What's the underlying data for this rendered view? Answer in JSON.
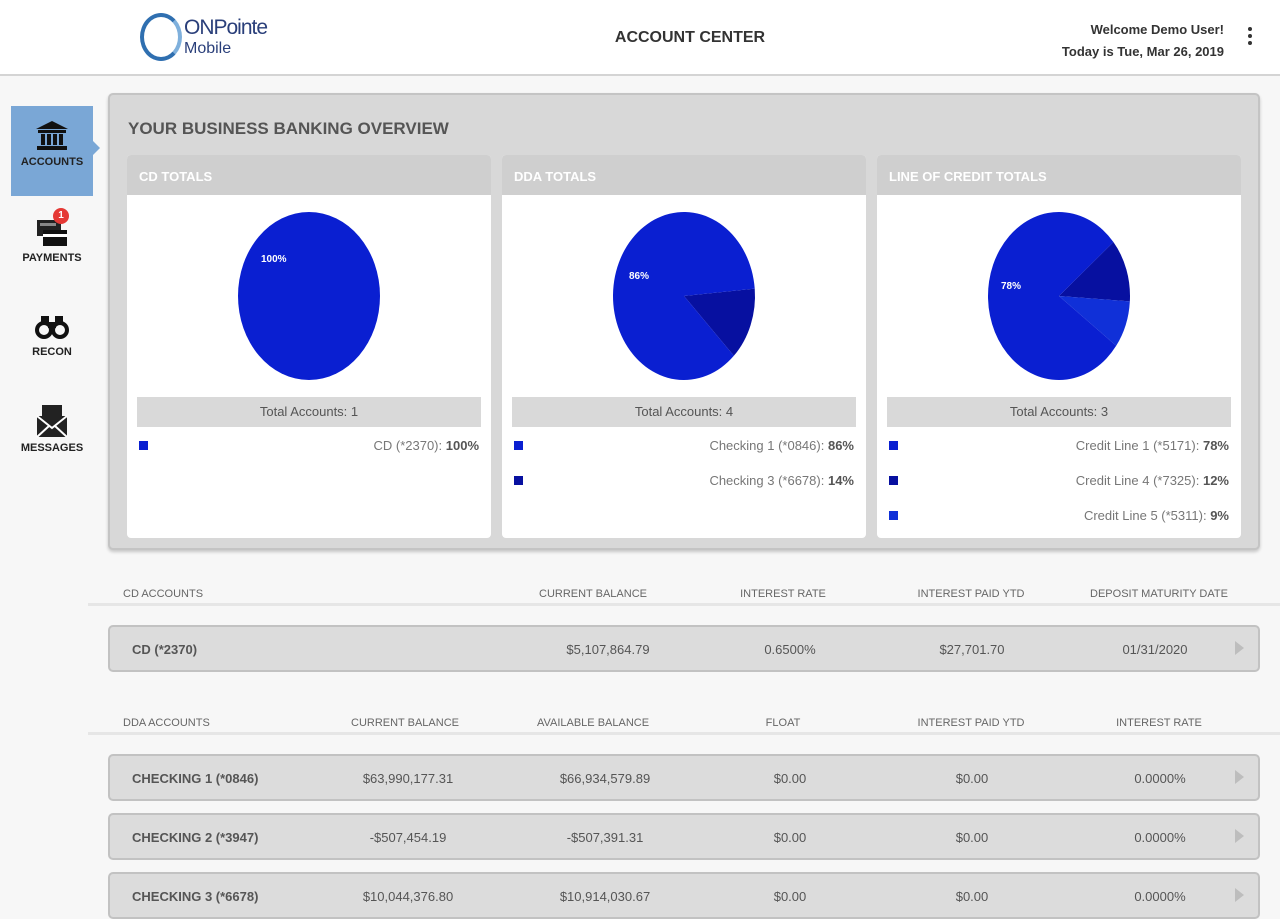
{
  "header": {
    "logo_text": "ONPointe",
    "logo_sub": "Mobile",
    "title": "ACCOUNT CENTER",
    "welcome": "Welcome Demo User!",
    "date": "Today is Tue, Mar 26, 2019"
  },
  "sidebar": {
    "items": [
      {
        "label": "ACCOUNTS",
        "icon": "bank-icon",
        "active": true
      },
      {
        "label": "PAYMENTS",
        "icon": "payment-card-icon",
        "badge": "1"
      },
      {
        "label": "RECON",
        "icon": "binoculars-icon"
      },
      {
        "label": "MESSAGES",
        "icon": "envelope-icon"
      }
    ]
  },
  "overview": {
    "title": "YOUR BUSINESS BANKING OVERVIEW"
  },
  "chart_data": [
    {
      "type": "pie",
      "title": "CD TOTALS",
      "total_label": "Total Accounts: 1",
      "slices": [
        {
          "label": "CD (*2370):",
          "value": 100,
          "display": "100%",
          "color": "#0a1fd1"
        }
      ]
    },
    {
      "type": "pie",
      "title": "DDA TOTALS",
      "total_label": "Total Accounts: 4",
      "slices": [
        {
          "label": "Checking 1 (*0846):",
          "value": 86,
          "display": "86%",
          "color": "#0a1fd1"
        },
        {
          "label": "Checking 3 (*6678):",
          "value": 14,
          "display": "14%",
          "color": "#0710a0"
        }
      ]
    },
    {
      "type": "pie",
      "title": "LINE OF CREDIT TOTALS",
      "total_label": "Total Accounts: 3",
      "slices": [
        {
          "label": "Credit Line 1 (*5171):",
          "value": 78,
          "display": "78%",
          "color": "#0a1fd1"
        },
        {
          "label": "Credit Line 4 (*7325):",
          "value": 12,
          "display": "12%",
          "color": "#0710a0"
        },
        {
          "label": "Credit Line 5 (*5311):",
          "value": 9,
          "display": "9%",
          "color": "#1030d8"
        }
      ]
    }
  ],
  "cd": {
    "headers": [
      "CD ACCOUNTS",
      "CURRENT BALANCE",
      "INTEREST RATE",
      "INTEREST PAID YTD",
      "DEPOSIT MATURITY DATE"
    ],
    "rows": [
      [
        "CD (*2370)",
        "$5,107,864.79",
        "0.6500%",
        "$27,701.70",
        "01/31/2020"
      ]
    ]
  },
  "dda": {
    "headers": [
      "DDA ACCOUNTS",
      "CURRENT BALANCE",
      "AVAILABLE BALANCE",
      "FLOAT",
      "INTEREST PAID YTD",
      "INTEREST RATE"
    ],
    "rows": [
      [
        "CHECKING 1 (*0846)",
        "$63,990,177.31",
        "$66,934,579.89",
        "$0.00",
        "$0.00",
        "0.0000%"
      ],
      [
        "CHECKING 2 (*3947)",
        "-$507,454.19",
        "-$507,391.31",
        "$0.00",
        "$0.00",
        "0.0000%"
      ],
      [
        "CHECKING 3 (*6678)",
        "$10,044,376.80",
        "$10,914,030.67",
        "$0.00",
        "$0.00",
        "0.0000%"
      ]
    ]
  }
}
